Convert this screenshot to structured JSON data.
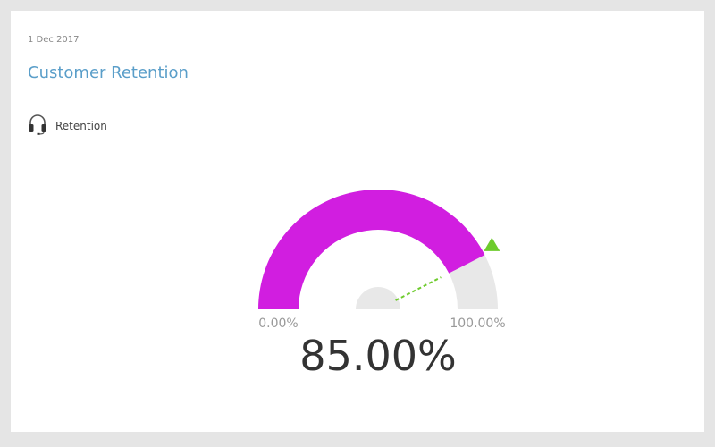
{
  "widget": {
    "date": "1 Dec 2017",
    "title": "Customer Retention",
    "kpi_icon": "headset-icon",
    "kpi_label": "Retention"
  },
  "chart_data": {
    "type": "gauge",
    "value": 85.0,
    "value_label": "85.00%",
    "min": 0,
    "max": 100,
    "min_label": "0.00%",
    "max_label": "100.00%",
    "target": 100,
    "colors": {
      "value_arc": "#d11ee0",
      "track": "#e8e8e8",
      "target_marker": "#6ecb2d",
      "label": "#999999",
      "value_text": "#333333"
    }
  }
}
